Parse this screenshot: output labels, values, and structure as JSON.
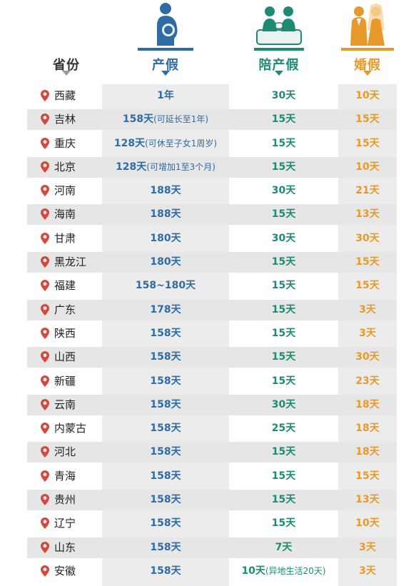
{
  "headers": {
    "province": "省份",
    "maternity": "产假",
    "paternity": "陪产假",
    "marriage": "婚假"
  },
  "colors": {
    "maternity": "#2f6ba5",
    "paternity": "#1f8a74",
    "marriage": "#e79a2b",
    "pin": "#d8473b"
  },
  "icons": {
    "maternity": "pregnant-woman-icon",
    "paternity": "father-baby-icon",
    "marriage": "bride-groom-icon",
    "row": "location-pin-icon"
  },
  "rows": [
    {
      "province": "西藏",
      "maternity": "1年",
      "maternity_note": "",
      "paternity": "30天",
      "paternity_note": "",
      "marriage": "10天"
    },
    {
      "province": "吉林",
      "maternity": "158天",
      "maternity_note": "(可延长至1年)",
      "paternity": "15天",
      "paternity_note": "",
      "marriage": "15天"
    },
    {
      "province": "重庆",
      "maternity": "128天",
      "maternity_note": "(可休至子女1周岁)",
      "paternity": "15天",
      "paternity_note": "",
      "marriage": "15天"
    },
    {
      "province": "北京",
      "maternity": "128天",
      "maternity_note": "(可增加1至3个月)",
      "paternity": "15天",
      "paternity_note": "",
      "marriage": "10天"
    },
    {
      "province": "河南",
      "maternity": "188天",
      "maternity_note": "",
      "paternity": "30天",
      "paternity_note": "",
      "marriage": "21天"
    },
    {
      "province": "海南",
      "maternity": "188天",
      "maternity_note": "",
      "paternity": "15天",
      "paternity_note": "",
      "marriage": "13天"
    },
    {
      "province": "甘肃",
      "maternity": "180天",
      "maternity_note": "",
      "paternity": "30天",
      "paternity_note": "",
      "marriage": "30天"
    },
    {
      "province": "黑龙江",
      "maternity": "180天",
      "maternity_note": "",
      "paternity": "15天",
      "paternity_note": "",
      "marriage": "15天"
    },
    {
      "province": "福建",
      "maternity": "158~180天",
      "maternity_note": "",
      "paternity": "15天",
      "paternity_note": "",
      "marriage": "15天"
    },
    {
      "province": "广东",
      "maternity": "178天",
      "maternity_note": "",
      "paternity": "15天",
      "paternity_note": "",
      "marriage": "3天"
    },
    {
      "province": "陕西",
      "maternity": "158天",
      "maternity_note": "",
      "paternity": "15天",
      "paternity_note": "",
      "marriage": "3天"
    },
    {
      "province": "山西",
      "maternity": "158天",
      "maternity_note": "",
      "paternity": "15天",
      "paternity_note": "",
      "marriage": "30天"
    },
    {
      "province": "新疆",
      "maternity": "158天",
      "maternity_note": "",
      "paternity": "15天",
      "paternity_note": "",
      "marriage": "23天"
    },
    {
      "province": "云南",
      "maternity": "158天",
      "maternity_note": "",
      "paternity": "30天",
      "paternity_note": "",
      "marriage": "18天"
    },
    {
      "province": "内蒙古",
      "maternity": "158天",
      "maternity_note": "",
      "paternity": "25天",
      "paternity_note": "",
      "marriage": "18天"
    },
    {
      "province": "河北",
      "maternity": "158天",
      "maternity_note": "",
      "paternity": "15天",
      "paternity_note": "",
      "marriage": "18天"
    },
    {
      "province": "青海",
      "maternity": "158天",
      "maternity_note": "",
      "paternity": "15天",
      "paternity_note": "",
      "marriage": "15天"
    },
    {
      "province": "贵州",
      "maternity": "158天",
      "maternity_note": "",
      "paternity": "15天",
      "paternity_note": "",
      "marriage": "13天"
    },
    {
      "province": "辽宁",
      "maternity": "158天",
      "maternity_note": "",
      "paternity": "15天",
      "paternity_note": "",
      "marriage": "10天"
    },
    {
      "province": "山东",
      "maternity": "158天",
      "maternity_note": "",
      "paternity": "7天",
      "paternity_note": "",
      "marriage": "3天"
    },
    {
      "province": "安徽",
      "maternity": "158天",
      "maternity_note": "",
      "paternity": "10天",
      "paternity_note": "(异地生活20天)",
      "marriage": "3天"
    }
  ]
}
